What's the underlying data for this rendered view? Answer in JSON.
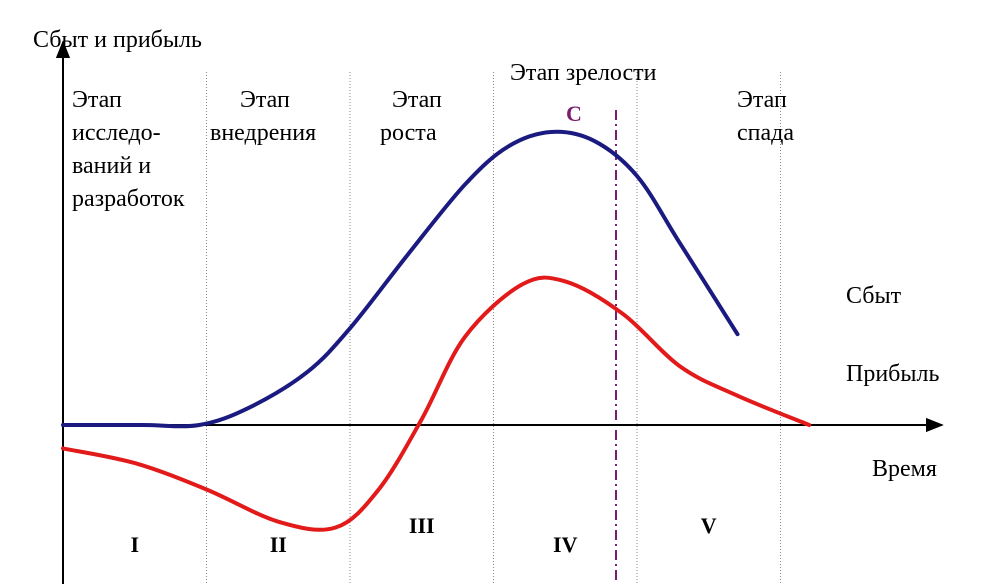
{
  "chart_data": {
    "type": "line",
    "ylabel": "Сбыт и прибыль",
    "xlabel": "Время",
    "stages": [
      {
        "lines": [
          "Этап",
          "исследо-",
          "ваний и",
          "разработок"
        ],
        "numeral": "I"
      },
      {
        "lines": [
          "Этап",
          "внедрения"
        ],
        "numeral": "II"
      },
      {
        "lines": [
          "Этап",
          "роста"
        ],
        "numeral": "III"
      },
      {
        "lines": [
          "Этап зрелости"
        ],
        "numeral": "IV"
      },
      {
        "lines": [
          "Этап",
          "спада"
        ],
        "numeral": "V"
      }
    ],
    "peak_label": "C",
    "series": [
      {
        "name": "Сбыт",
        "color": "#1a1a80",
        "points": [
          [
            0.0,
            0.0
          ],
          [
            0.55,
            0.0
          ],
          [
            0.95,
            0.0
          ],
          [
            1.3,
            0.06
          ],
          [
            1.7,
            0.18
          ],
          [
            2.0,
            0.33
          ],
          [
            2.4,
            0.58
          ],
          [
            2.8,
            0.82
          ],
          [
            3.1,
            0.95
          ],
          [
            3.4,
            1.0
          ],
          [
            3.7,
            0.97
          ],
          [
            4.0,
            0.85
          ],
          [
            4.3,
            0.62
          ],
          [
            4.7,
            0.31
          ]
        ]
      },
      {
        "name": "Прибыль",
        "color": "#e21a1a",
        "points": [
          [
            0.0,
            -0.08
          ],
          [
            0.5,
            -0.13
          ],
          [
            1.0,
            -0.22
          ],
          [
            1.5,
            -0.33
          ],
          [
            1.9,
            -0.35
          ],
          [
            2.2,
            -0.22
          ],
          [
            2.5,
            0.02
          ],
          [
            2.8,
            0.3
          ],
          [
            3.2,
            0.48
          ],
          [
            3.5,
            0.49
          ],
          [
            3.9,
            0.38
          ],
          [
            4.3,
            0.2
          ],
          [
            4.7,
            0.1
          ],
          [
            5.2,
            0.0
          ]
        ]
      }
    ]
  }
}
